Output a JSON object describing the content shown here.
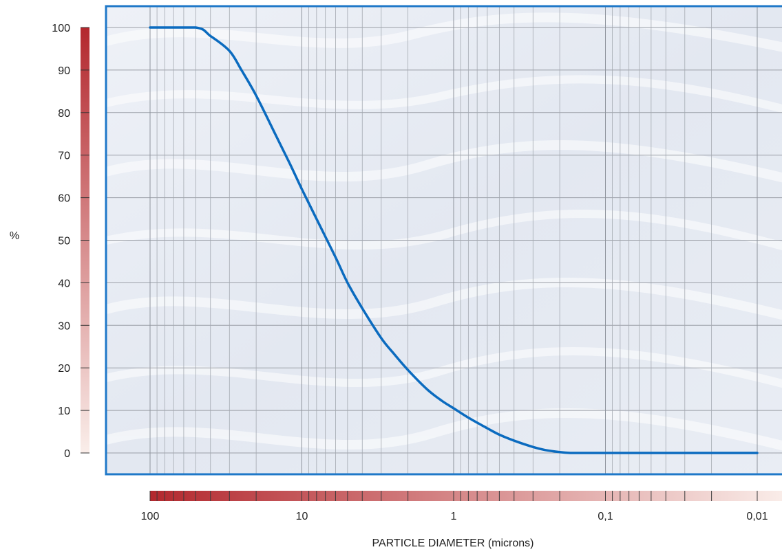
{
  "chart_data": {
    "type": "line",
    "title": "",
    "xlabel": "PARTICLE DIAMETER (microns)",
    "ylabel": "%",
    "x_scale": "log",
    "x_reversed": true,
    "xlim": [
      100,
      0.01
    ],
    "ylim": [
      0,
      100
    ],
    "yticks": [
      0,
      10,
      20,
      30,
      40,
      50,
      60,
      70,
      80,
      90,
      100
    ],
    "ytick_labels": [
      "0",
      "10",
      "20",
      "30",
      "40",
      "50",
      "60",
      "70",
      "80",
      "90",
      "100"
    ],
    "xticks": [
      100,
      10,
      1,
      0.1,
      0.01
    ],
    "xtick_labels": [
      "100",
      "10",
      "1",
      "0,1",
      "0,01"
    ],
    "grid": true,
    "series": [
      {
        "color": "#0b6bbf",
        "x": [
          100,
          50,
          40,
          30,
          25,
          20,
          15,
          12,
          10,
          8,
          6,
          5,
          4,
          3,
          2.5,
          2,
          1.5,
          1.2,
          1,
          0.8,
          0.6,
          0.5,
          0.4,
          0.3,
          0.25,
          0.2,
          0.17,
          0.15,
          0.1,
          0.05,
          0.02,
          0.01
        ],
        "y": [
          100,
          100,
          98,
          94.5,
          90,
          84,
          75,
          68,
          62,
          55,
          46,
          40,
          34,
          27,
          23.5,
          19.5,
          15,
          12.3,
          10.5,
          8.3,
          5.8,
          4.3,
          2.9,
          1.4,
          0.7,
          0.2,
          0,
          0,
          0,
          0,
          0,
          0
        ]
      }
    ]
  }
}
